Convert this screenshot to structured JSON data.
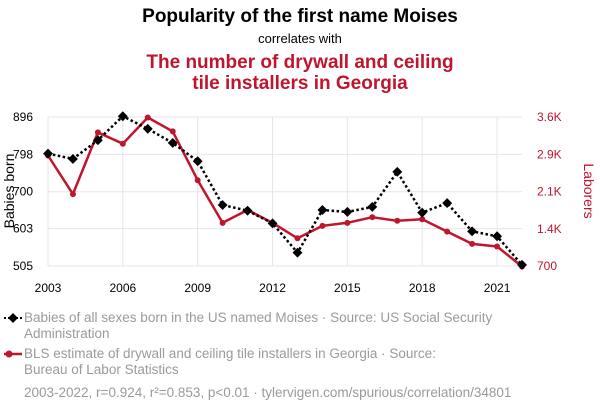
{
  "title": "Popularity of the first name Moises",
  "subtitle": "correlates with",
  "title2_line1": "The number of drywall and ceiling",
  "title2_line2": "tile installers in Georgia",
  "colors": {
    "series1": "#000000",
    "series2": "#c0152f",
    "legend_text": "#9a9a9a"
  },
  "chart_data": {
    "type": "line",
    "title": "Popularity of the first name Moises correlates with The number of drywall and ceiling tile installers in Georgia",
    "x": [
      2003,
      2004,
      2005,
      2006,
      2007,
      2008,
      2009,
      2010,
      2011,
      2012,
      2013,
      2014,
      2015,
      2016,
      2017,
      2018,
      2019,
      2020,
      2021,
      2022
    ],
    "xlim": [
      2003,
      2022
    ],
    "x_ticks": [
      "2003",
      "2006",
      "2009",
      "2012",
      "2015",
      "2018",
      "2021"
    ],
    "left_axis": {
      "label": "Babies born",
      "ylim": [
        505,
        896
      ],
      "ticks": [
        "505",
        "603",
        "700",
        "798",
        "896"
      ],
      "tick_values": [
        505,
        603,
        700,
        798,
        896
      ]
    },
    "right_axis": {
      "label": "Laborers",
      "ylim": [
        700,
        3600
      ],
      "ticks": [
        "700",
        "1.4K",
        "2.1K",
        "2.9K",
        "3.6K"
      ],
      "tick_values": [
        700,
        1425,
        2150,
        2875,
        3600
      ]
    },
    "grid": true,
    "series": [
      {
        "name": "Babies of all sexes born in the US named Moises",
        "axis": "left",
        "marker": "diamond",
        "style": "dotted",
        "values": [
          800,
          786,
          835,
          898,
          865,
          828,
          780,
          665,
          650,
          617,
          540,
          652,
          647,
          660,
          752,
          645,
          670,
          596,
          583,
          508
        ]
      },
      {
        "name": "BLS estimate of drywall and ceiling tile installers in Georgia",
        "axis": "right",
        "marker": "circle",
        "style": "solid",
        "values": [
          2850,
          2100,
          3300,
          3080,
          3590,
          3320,
          2370,
          1540,
          1790,
          1540,
          1240,
          1480,
          1540,
          1650,
          1580,
          1610,
          1370,
          1130,
          1080,
          690
        ]
      }
    ]
  },
  "legend": {
    "item1_line1": "Babies of all sexes born in the US named Moises · Source: US Social Security",
    "item1_line2": "Administration",
    "item2_line1": "BLS estimate of drywall and ceiling tile installers in Georgia · Source:",
    "item2_line2": "Bureau of Labor Statistics"
  },
  "footer": "2003-2022, r=0.924, r²=0.853, p<0.01 · tylervigen.com/spurious/correlation/34801"
}
